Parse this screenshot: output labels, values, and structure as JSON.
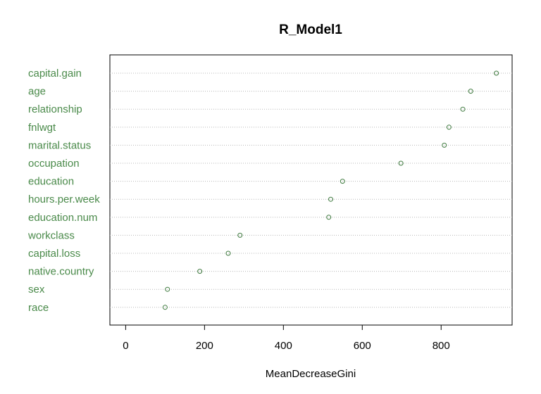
{
  "chart_data": {
    "type": "scatter",
    "subtype": "dotchart",
    "title": "R_Model1",
    "xlabel": "MeanDecreaseGini",
    "ylabel": "",
    "xlim": [
      -40,
      980
    ],
    "xticks": [
      0,
      200,
      400,
      600,
      800
    ],
    "grid": "dotted horizontal lines per category",
    "label_color": "#4a8a4a",
    "point_color": "#3e7a3e",
    "categories": [
      "capital.gain",
      "age",
      "relationship",
      "fnlwgt",
      "marital.status",
      "occupation",
      "education",
      "hours.per.week",
      "education.num",
      "workclass",
      "capital.loss",
      "native.country",
      "sex",
      "race"
    ],
    "values": [
      940,
      875,
      855,
      820,
      808,
      698,
      550,
      520,
      515,
      290,
      260,
      188,
      106,
      100
    ]
  }
}
